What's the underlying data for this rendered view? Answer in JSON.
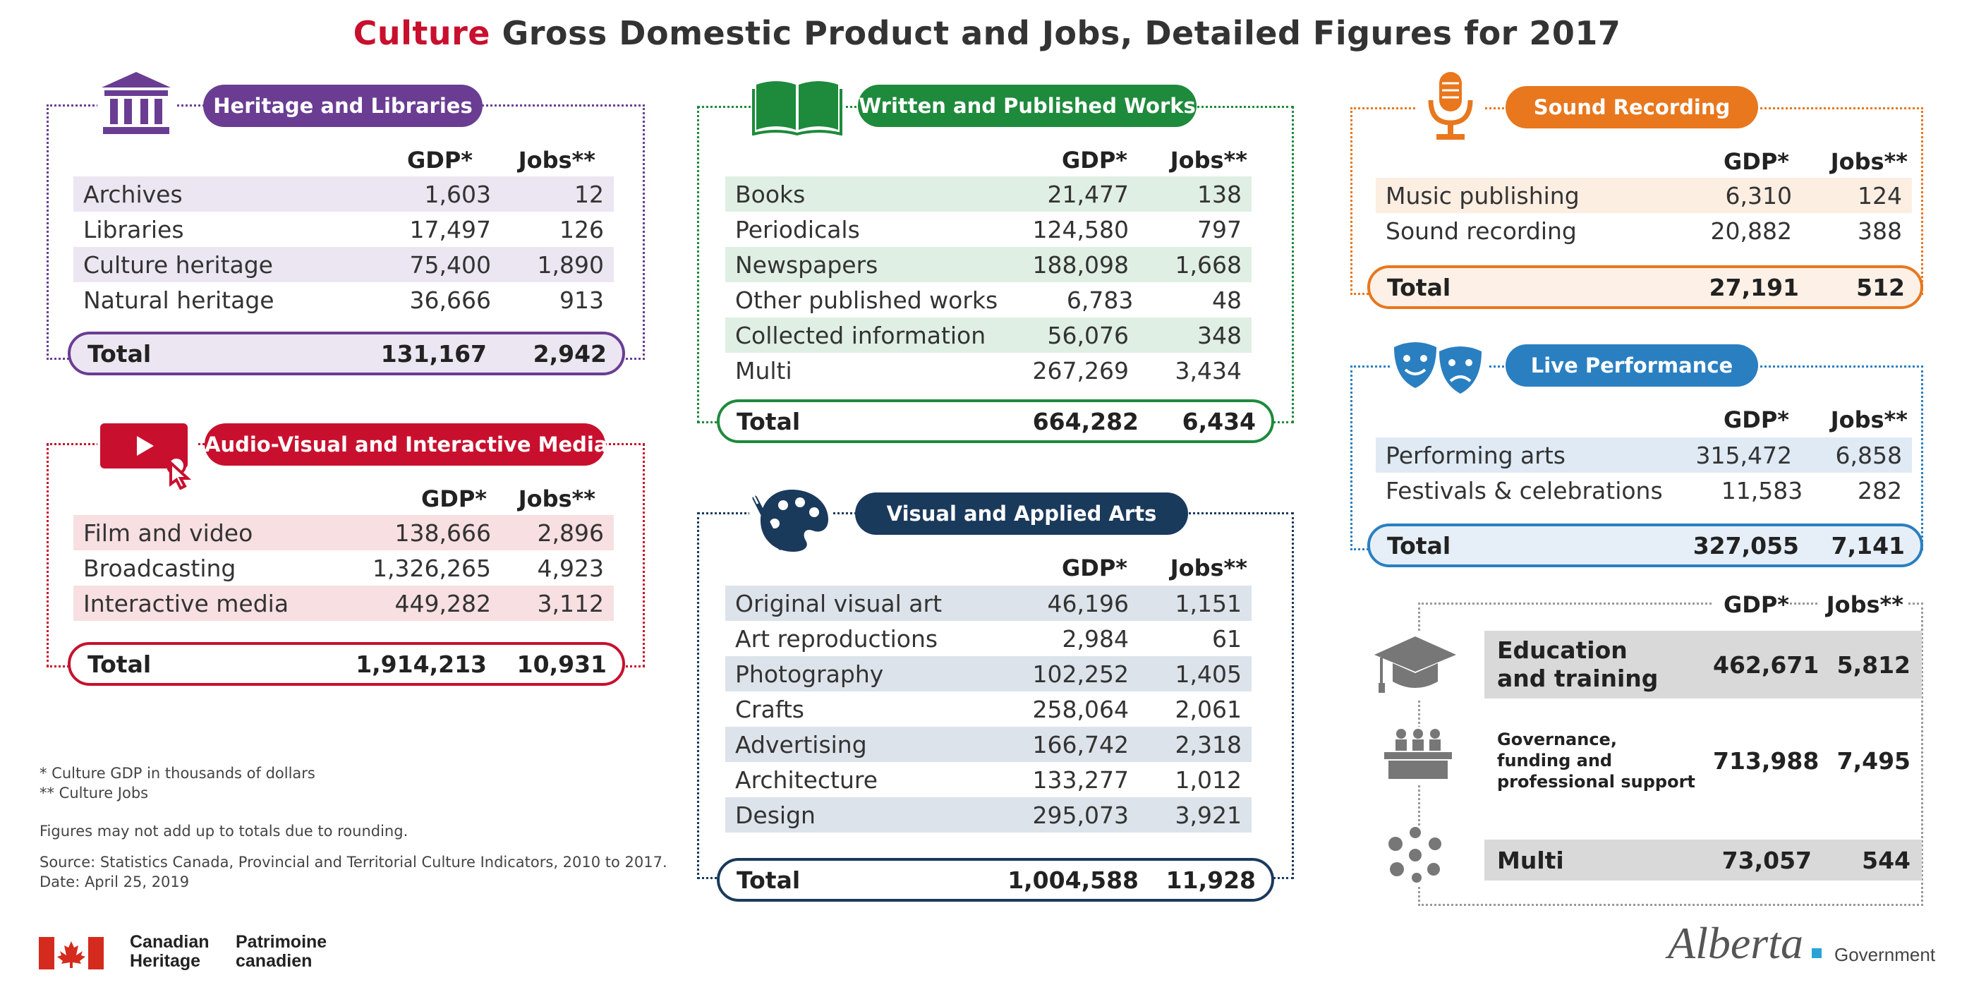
{
  "title": {
    "accent": "Culture",
    "rest": "Gross Domestic Product and Jobs, Detailed Figures for 2017"
  },
  "colors": {
    "heritage": "#6a3d93",
    "av": "#c8102e",
    "written": "#1e8a3c",
    "visual": "#1a3a5c",
    "sound": "#e8771e",
    "live": "#2a7fc1",
    "gray": "#999999"
  },
  "col_gdp": "GDP*",
  "col_jobs": "Jobs**",
  "heritage": {
    "title": "Heritage and Libraries",
    "icon": "museum-icon",
    "rows": [
      {
        "label": "Archives",
        "gdp": "1,603",
        "jobs": "12"
      },
      {
        "label": "Libraries",
        "gdp": "17,497",
        "jobs": "126"
      },
      {
        "label": "Culture heritage",
        "gdp": "75,400",
        "jobs": "1,890"
      },
      {
        "label": "Natural heritage",
        "gdp": "36,666",
        "jobs": "913"
      }
    ],
    "total": {
      "label": "Total",
      "gdp": "131,167",
      "jobs": "2,942"
    }
  },
  "av": {
    "title": "Audio-Visual and Interactive Media",
    "icon": "video-play-icon",
    "rows": [
      {
        "label": "Film and video",
        "gdp": "138,666",
        "jobs": "2,896"
      },
      {
        "label": "Broadcasting",
        "gdp": "1,326,265",
        "jobs": "4,923"
      },
      {
        "label": "Interactive media",
        "gdp": "449,282",
        "jobs": "3,112"
      }
    ],
    "total": {
      "label": "Total",
      "gdp": "1,914,213",
      "jobs": "10,931"
    }
  },
  "written": {
    "title": "Written and Published Works",
    "icon": "open-book-icon",
    "rows": [
      {
        "label": "Books",
        "gdp": "21,477",
        "jobs": "138"
      },
      {
        "label": "Periodicals",
        "gdp": "124,580",
        "jobs": "797"
      },
      {
        "label": "Newspapers",
        "gdp": "188,098",
        "jobs": "1,668"
      },
      {
        "label": "Other published works",
        "gdp": "6,783",
        "jobs": "48"
      },
      {
        "label": "Collected information",
        "gdp": "56,076",
        "jobs": "348"
      },
      {
        "label": "Multi",
        "gdp": "267,269",
        "jobs": "3,434"
      }
    ],
    "total": {
      "label": "Total",
      "gdp": "664,282",
      "jobs": "6,434"
    }
  },
  "visual": {
    "title": "Visual and Applied Arts",
    "icon": "palette-icon",
    "rows": [
      {
        "label": "Original visual art",
        "gdp": "46,196",
        "jobs": "1,151"
      },
      {
        "label": "Art reproductions",
        "gdp": "2,984",
        "jobs": "61"
      },
      {
        "label": "Photography",
        "gdp": "102,252",
        "jobs": "1,405"
      },
      {
        "label": "Crafts",
        "gdp": "258,064",
        "jobs": "2,061"
      },
      {
        "label": "Advertising",
        "gdp": "166,742",
        "jobs": "2,318"
      },
      {
        "label": "Architecture",
        "gdp": "133,277",
        "jobs": "1,012"
      },
      {
        "label": "Design",
        "gdp": "295,073",
        "jobs": "3,921"
      }
    ],
    "total": {
      "label": "Total",
      "gdp": "1,004,588",
      "jobs": "11,928"
    }
  },
  "sound": {
    "title": "Sound Recording",
    "icon": "microphone-icon",
    "rows": [
      {
        "label": "Music publishing",
        "gdp": "6,310",
        "jobs": "124"
      },
      {
        "label": "Sound recording",
        "gdp": "20,882",
        "jobs": "388"
      }
    ],
    "total": {
      "label": "Total",
      "gdp": "27,191",
      "jobs": "512"
    }
  },
  "live": {
    "title": "Live Performance",
    "icon": "theatre-masks-icon",
    "rows": [
      {
        "label": "Performing arts",
        "gdp": "315,472",
        "jobs": "6,858"
      },
      {
        "label": "Festivals & celebrations",
        "gdp": "11,583",
        "jobs": "282"
      }
    ],
    "total": {
      "label": "Total",
      "gdp": "327,055",
      "jobs": "7,141"
    }
  },
  "other": {
    "rows": [
      {
        "label1": "Education",
        "label2": "and training",
        "gdp": "462,671",
        "jobs": "5,812",
        "icon": "graduation-cap-icon"
      },
      {
        "label1": "Governance,",
        "label2": "funding and",
        "label3": "professional support",
        "gdp": "713,988",
        "jobs": "7,495",
        "icon": "meeting-table-icon"
      },
      {
        "label1": "Multi",
        "gdp": "73,057",
        "jobs": "544",
        "icon": "dots-cluster-icon"
      }
    ]
  },
  "notes": {
    "n1": "* Culture GDP in thousands of dollars",
    "n2": "** Culture Jobs",
    "n3": "Figures may not add up to totals due to rounding.",
    "n4": "Source: Statistics Canada, Provincial and Territorial Culture Indicators, 2010 to 2017.",
    "n5": "Date: April 25, 2019"
  },
  "logos": {
    "ch_en1": "Canadian",
    "ch_en2": "Heritage",
    "ch_fr1": "Patrimoine",
    "ch_fr2": "canadien",
    "alberta": "Alberta",
    "government": "Government"
  }
}
